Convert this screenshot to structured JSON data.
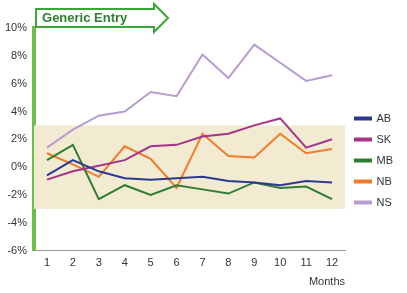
{
  "chart_data": {
    "type": "line",
    "x_label": "Months",
    "annotation": "Generic Entry",
    "reference_band": [
      -3,
      3
    ],
    "categories": [
      1,
      2,
      3,
      4,
      5,
      6,
      7,
      8,
      9,
      10,
      11,
      12
    ],
    "series": [
      {
        "name": "AB",
        "color": "#2b3990",
        "values": [
          -0.6,
          0.5,
          -0.3,
          -0.8,
          -0.9,
          -0.8,
          -0.7,
          -1.0,
          -1.1,
          -1.3,
          -1.0,
          -1.1
        ]
      },
      {
        "name": "SK",
        "color": "#a4358a",
        "values": [
          -0.9,
          -0.3,
          0.1,
          0.5,
          1.5,
          1.6,
          2.2,
          2.4,
          3.0,
          3.5,
          1.4,
          2.0
        ]
      },
      {
        "name": "MB",
        "color": "#2e7d32",
        "values": [
          0.5,
          1.6,
          -2.3,
          -1.3,
          -2.0,
          -1.3,
          -1.6,
          -1.9,
          -1.1,
          -1.5,
          -1.4,
          -2.3
        ]
      },
      {
        "name": "NB",
        "color": "#f07c2a",
        "values": [
          1.0,
          0.2,
          -0.7,
          1.5,
          0.6,
          -1.5,
          2.4,
          0.8,
          0.7,
          2.4,
          1.0,
          1.3
        ]
      },
      {
        "name": "NS",
        "color": "#b79ccf",
        "values": [
          1.4,
          2.7,
          3.7,
          4.0,
          5.4,
          5.1,
          8.1,
          6.4,
          8.8,
          7.5,
          6.2,
          6.6
        ]
      }
    ],
    "ylim": [
      -6,
      10
    ],
    "yticks": [
      {
        "value": -6,
        "label": "-6%"
      },
      {
        "value": -4,
        "label": "-4%"
      },
      {
        "value": -2,
        "label": "-2%"
      },
      {
        "value": 0,
        "label": "0%"
      },
      {
        "value": 2,
        "label": "2%"
      },
      {
        "value": 4,
        "label": "4%"
      },
      {
        "value": 6,
        "label": "6%"
      },
      {
        "value": 8,
        "label": "8%"
      },
      {
        "value": 10,
        "label": "10%"
      }
    ],
    "grid": false,
    "legend": "right"
  }
}
